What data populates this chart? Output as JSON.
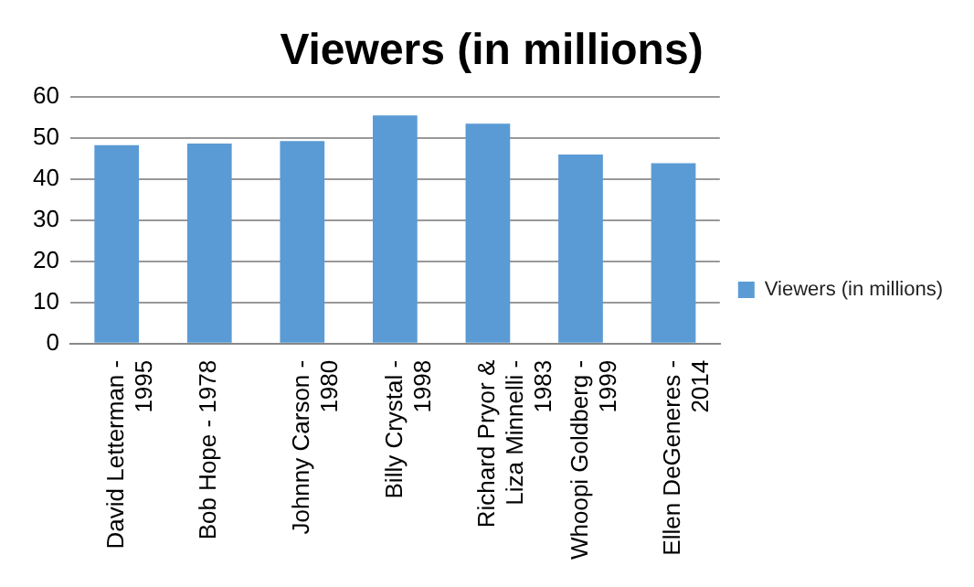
{
  "chart_data": {
    "type": "bar",
    "title": "Viewers (in millions)",
    "categories": [
      "David Letterman - 1995",
      "Bob Hope - 1978",
      "Johnny Carson - 1980",
      "Billy Crystal - 1998",
      "Richard Pryor & Liza Minnelli - 1983",
      "Whoopi Goldberg - 1999",
      "Ellen DeGeneres - 2014"
    ],
    "series": [
      {
        "name": "Viewers (in millions)",
        "color": "#5b9bd5",
        "values": [
          48.2,
          48.6,
          49.2,
          55.4,
          53.4,
          45.9,
          43.8
        ]
      }
    ],
    "ylim": [
      0,
      60
    ],
    "yticks": [
      0,
      10,
      20,
      30,
      40,
      50,
      60
    ],
    "grid": "y",
    "legend": "right"
  }
}
